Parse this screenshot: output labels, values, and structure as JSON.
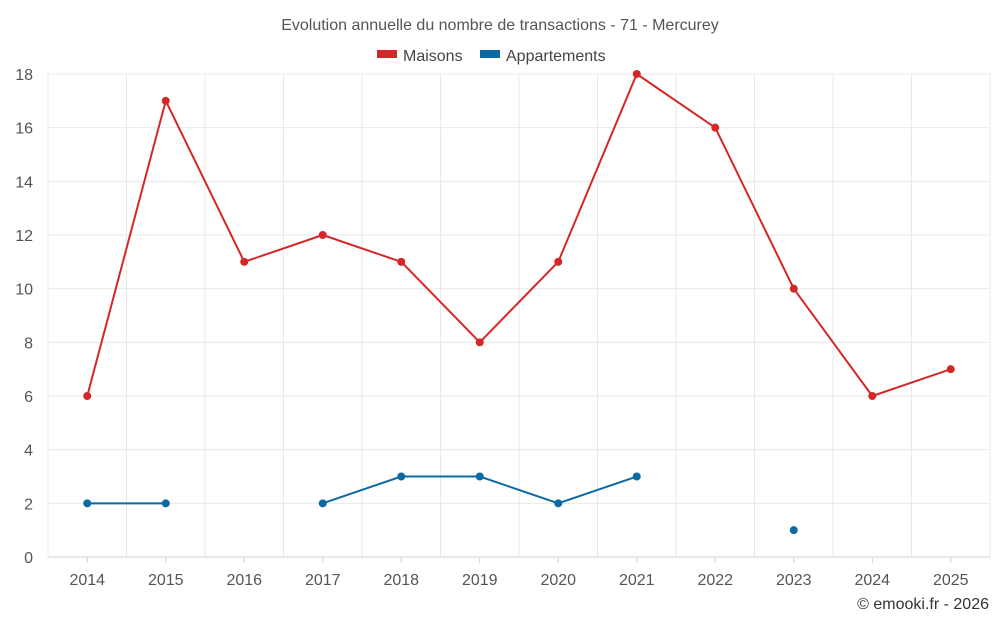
{
  "chart_data": {
    "type": "line",
    "title": "Evolution annuelle du nombre de transactions - 71 - Mercurey",
    "categories": [
      "2014",
      "2015",
      "2016",
      "2017",
      "2018",
      "2019",
      "2020",
      "2021",
      "2022",
      "2023",
      "2024",
      "2025"
    ],
    "series": [
      {
        "name": "Maisons",
        "color": "#d62728",
        "values": [
          6,
          17,
          11,
          12,
          11,
          8,
          11,
          18,
          16,
          10,
          6,
          7
        ]
      },
      {
        "name": "Appartements",
        "color": "#0b6aa2",
        "values": [
          2,
          2,
          null,
          2,
          3,
          3,
          2,
          3,
          null,
          1,
          null,
          null
        ]
      }
    ],
    "ylim": [
      0,
      18
    ],
    "yticks": [
      0,
      2,
      4,
      6,
      8,
      10,
      12,
      14,
      16,
      18
    ],
    "grid": true,
    "legend_position": "top-center",
    "credit": "© emooki.fr - 2026"
  }
}
